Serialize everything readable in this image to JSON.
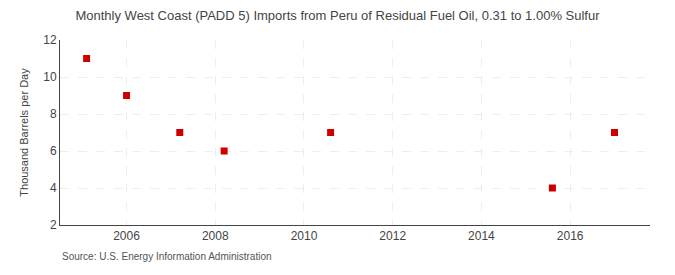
{
  "chart_data": {
    "type": "scatter",
    "title": "Monthly West Coast (PADD 5) Imports from Peru of Residual Fuel Oil, 0.31 to 1.00% Sulfur",
    "ylabel": "Thousand Barrels per Day",
    "annotations": [
      "Source: U.S. Energy Information Administration"
    ],
    "x": [
      2005.1,
      2006.0,
      2007.2,
      2008.2,
      2010.6,
      2015.6,
      2017.0
    ],
    "values": [
      11.0,
      9.0,
      7.0,
      6.0,
      7.0,
      4.0,
      7.0
    ],
    "color": "#cc0000",
    "marker": "square",
    "xlim": [
      2004.5,
      2017.8
    ],
    "ylim": [
      2,
      12
    ],
    "xticks": [
      2006,
      2008,
      2010,
      2012,
      2014,
      2016
    ],
    "yticks": [
      2,
      4,
      6,
      8,
      10,
      12
    ],
    "grid": true
  }
}
